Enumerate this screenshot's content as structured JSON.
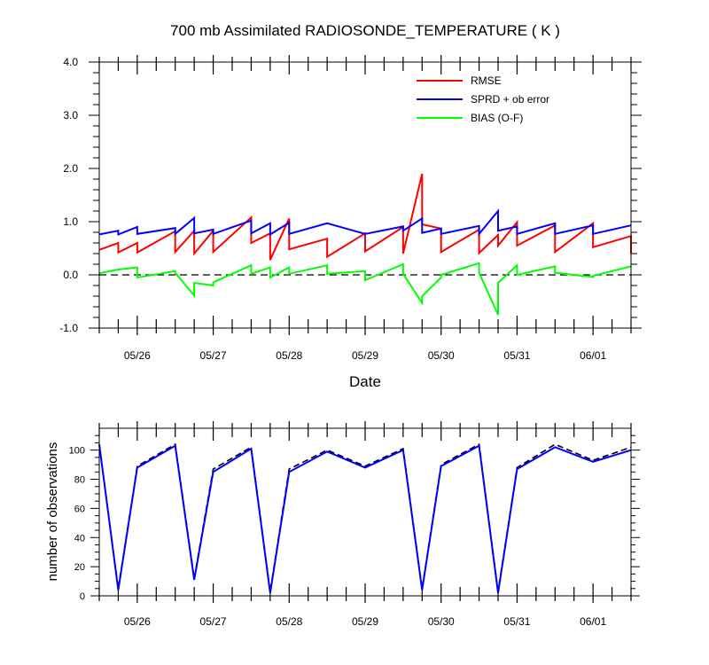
{
  "chart_data": [
    {
      "type": "line",
      "title": "700 mb Assimilated RADIOSONDE_TEMPERATURE ( K )",
      "xlabel": "Date",
      "ylabel": "",
      "x_type": "date",
      "xlim": [
        "2014-05-25T12:00",
        "2014-06-01T12:00"
      ],
      "ylim": [
        -1.0,
        4.0
      ],
      "yticks": [
        "-1.0",
        "0.0",
        "1.0",
        "2.0",
        "3.0",
        "4.0"
      ],
      "xticks": [
        "05/26",
        "05/27",
        "05/28",
        "05/29",
        "05/30",
        "05/31",
        "06/01"
      ],
      "zero_line": "dashed",
      "legend_position": "top-right",
      "series": [
        {
          "name": "RMSE",
          "color": "#ff0000",
          "points": [
            [
              "2014-05-25T12:00",
              0.47
            ],
            [
              "2014-05-25T18:00",
              0.6
            ],
            [
              "2014-05-25T18:00",
              0.42
            ],
            [
              "2014-05-26T00:00",
              0.6
            ],
            [
              "2014-05-26T00:00",
              0.42
            ],
            [
              "2014-05-26T12:00",
              0.82
            ],
            [
              "2014-05-26T12:00",
              0.43
            ],
            [
              "2014-05-26T18:00",
              0.83
            ],
            [
              "2014-05-26T18:00",
              0.4
            ],
            [
              "2014-05-27T00:00",
              0.83
            ],
            [
              "2014-05-27T00:00",
              0.43
            ],
            [
              "2014-05-27T12:00",
              1.08
            ],
            [
              "2014-05-27T12:00",
              0.6
            ],
            [
              "2014-05-27T18:00",
              0.78
            ],
            [
              "2014-05-27T18:00",
              0.28
            ],
            [
              "2014-05-28T00:00",
              1.06
            ],
            [
              "2014-05-28T00:00",
              0.48
            ],
            [
              "2014-05-28T12:00",
              0.68
            ],
            [
              "2014-05-28T12:00",
              0.34
            ],
            [
              "2014-05-29T00:00",
              0.78
            ],
            [
              "2014-05-29T00:00",
              0.44
            ],
            [
              "2014-05-29T12:00",
              0.9
            ],
            [
              "2014-05-29T12:00",
              0.4
            ],
            [
              "2014-05-29T18:00",
              1.9
            ],
            [
              "2014-05-29T18:00",
              0.95
            ],
            [
              "2014-05-30T00:00",
              0.87
            ],
            [
              "2014-05-30T00:00",
              0.43
            ],
            [
              "2014-05-30T12:00",
              0.85
            ],
            [
              "2014-05-30T12:00",
              0.41
            ],
            [
              "2014-05-30T18:00",
              0.75
            ],
            [
              "2014-05-30T18:00",
              0.55
            ],
            [
              "2014-05-31T00:00",
              0.99
            ],
            [
              "2014-05-31T00:00",
              0.55
            ],
            [
              "2014-05-31T12:00",
              0.93
            ],
            [
              "2014-05-31T12:00",
              0.43
            ],
            [
              "2014-06-01T00:00",
              0.97
            ],
            [
              "2014-06-01T00:00",
              0.52
            ],
            [
              "2014-06-01T12:00",
              0.73
            ],
            [
              "2014-06-01T12:00",
              0.4
            ]
          ]
        },
        {
          "name": "SPRD + ob error",
          "color": "#0000ff",
          "points": [
            [
              "2014-05-25T12:00",
              0.76
            ],
            [
              "2014-05-25T18:00",
              0.83
            ],
            [
              "2014-05-25T18:00",
              0.76
            ],
            [
              "2014-05-26T00:00",
              0.9
            ],
            [
              "2014-05-26T00:00",
              0.77
            ],
            [
              "2014-05-26T12:00",
              0.88
            ],
            [
              "2014-05-26T12:00",
              0.77
            ],
            [
              "2014-05-26T18:00",
              1.07
            ],
            [
              "2014-05-26T18:00",
              0.78
            ],
            [
              "2014-05-27T00:00",
              0.85
            ],
            [
              "2014-05-27T00:00",
              0.77
            ],
            [
              "2014-05-27T12:00",
              1.02
            ],
            [
              "2014-05-27T12:00",
              0.78
            ],
            [
              "2014-05-27T18:00",
              0.97
            ],
            [
              "2014-05-27T18:00",
              0.76
            ],
            [
              "2014-05-28T00:00",
              0.98
            ],
            [
              "2014-05-28T00:00",
              0.77
            ],
            [
              "2014-05-28T12:00",
              0.97
            ],
            [
              "2014-05-29T00:00",
              0.77
            ],
            [
              "2014-05-29T12:00",
              0.91
            ],
            [
              "2014-05-29T12:00",
              0.83
            ],
            [
              "2014-05-29T18:00",
              1.06
            ],
            [
              "2014-05-29T18:00",
              0.79
            ],
            [
              "2014-05-30T00:00",
              0.87
            ],
            [
              "2014-05-30T00:00",
              0.77
            ],
            [
              "2014-05-30T12:00",
              0.92
            ],
            [
              "2014-05-30T12:00",
              0.77
            ],
            [
              "2014-05-30T18:00",
              1.2
            ],
            [
              "2014-05-30T18:00",
              0.83
            ],
            [
              "2014-05-31T00:00",
              0.91
            ],
            [
              "2014-05-31T00:00",
              0.77
            ],
            [
              "2014-05-31T12:00",
              0.97
            ],
            [
              "2014-05-31T12:00",
              0.77
            ],
            [
              "2014-06-01T00:00",
              0.93
            ],
            [
              "2014-06-01T00:00",
              0.77
            ],
            [
              "2014-06-01T12:00",
              0.93
            ]
          ]
        },
        {
          "name": "BIAS (O-F)",
          "color": "#00ff00",
          "points": [
            [
              "2014-05-25T12:00",
              0.03
            ],
            [
              "2014-05-25T18:00",
              0.1
            ],
            [
              "2014-05-26T00:00",
              0.14
            ],
            [
              "2014-05-26T00:00",
              -0.05
            ],
            [
              "2014-05-26T12:00",
              0.07
            ],
            [
              "2014-05-26T12:00",
              0.04
            ],
            [
              "2014-05-26T18:00",
              -0.39
            ],
            [
              "2014-05-26T18:00",
              -0.15
            ],
            [
              "2014-05-27T00:00",
              -0.2
            ],
            [
              "2014-05-27T00:00",
              -0.14
            ],
            [
              "2014-05-27T12:00",
              0.18
            ],
            [
              "2014-05-27T12:00",
              0.02
            ],
            [
              "2014-05-27T18:00",
              0.14
            ],
            [
              "2014-05-27T18:00",
              -0.05
            ],
            [
              "2014-05-28T00:00",
              0.14
            ],
            [
              "2014-05-28T00:00",
              0.02
            ],
            [
              "2014-05-28T12:00",
              0.18
            ],
            [
              "2014-05-28T12:00",
              0.02
            ],
            [
              "2014-05-29T00:00",
              0.07
            ],
            [
              "2014-05-29T00:00",
              -0.1
            ],
            [
              "2014-05-29T12:00",
              0.2
            ],
            [
              "2014-05-29T12:00",
              0.02
            ],
            [
              "2014-05-29T18:00",
              -0.53
            ],
            [
              "2014-05-29T18:00",
              -0.4
            ],
            [
              "2014-05-30T00:00",
              -0.05
            ],
            [
              "2014-05-30T00:00",
              0.0
            ],
            [
              "2014-05-30T12:00",
              0.22
            ],
            [
              "2014-05-30T12:00",
              0.04
            ],
            [
              "2014-05-30T18:00",
              -0.75
            ],
            [
              "2014-05-30T18:00",
              -0.15
            ],
            [
              "2014-05-31T00:00",
              0.18
            ],
            [
              "2014-05-31T00:00",
              0.0
            ],
            [
              "2014-05-31T12:00",
              0.16
            ],
            [
              "2014-05-31T12:00",
              0.04
            ],
            [
              "2014-06-01T00:00",
              -0.04
            ],
            [
              "2014-06-01T00:00",
              -0.02
            ],
            [
              "2014-06-01T12:00",
              0.16
            ]
          ]
        }
      ]
    },
    {
      "type": "line",
      "title": "",
      "xlabel": "",
      "ylabel": "number of observations",
      "x_type": "date",
      "xlim": [
        "2014-05-25T12:00",
        "2014-06-01T12:00"
      ],
      "ylim": [
        0,
        115
      ],
      "yticks": [
        "0",
        "20",
        "40",
        "60",
        "80",
        "100"
      ],
      "xticks": [
        "05/26",
        "05/27",
        "05/28",
        "05/29",
        "05/30",
        "05/31",
        "06/01"
      ],
      "series": [
        {
          "style": "dashed",
          "color": "#000000",
          "points": [
            [
              "2014-05-25T12:00",
              104
            ],
            [
              "2014-05-25T18:00",
              5
            ],
            [
              "2014-05-26T00:00",
              89
            ],
            [
              "2014-05-26T12:00",
              104
            ],
            [
              "2014-05-26T18:00",
              12
            ],
            [
              "2014-05-27T00:00",
              87
            ],
            [
              "2014-05-27T12:00",
              102
            ],
            [
              "2014-05-27T18:00",
              3
            ],
            [
              "2014-05-28T00:00",
              87
            ],
            [
              "2014-05-28T12:00",
              100
            ],
            [
              "2014-05-29T00:00",
              89
            ],
            [
              "2014-05-29T12:00",
              101
            ],
            [
              "2014-05-29T18:00",
              5
            ],
            [
              "2014-05-30T00:00",
              90
            ],
            [
              "2014-05-30T12:00",
              104
            ],
            [
              "2014-05-30T18:00",
              3
            ],
            [
              "2014-05-31T00:00",
              88
            ],
            [
              "2014-05-31T12:00",
              104
            ],
            [
              "2014-06-01T00:00",
              93
            ],
            [
              "2014-06-01T12:00",
              102
            ]
          ]
        },
        {
          "style": "solid",
          "color": "#0000ff",
          "points": [
            [
              "2014-05-25T12:00",
              104
            ],
            [
              "2014-05-25T18:00",
              4
            ],
            [
              "2014-05-26T00:00",
              88
            ],
            [
              "2014-05-26T12:00",
              103
            ],
            [
              "2014-05-26T18:00",
              11
            ],
            [
              "2014-05-27T00:00",
              85
            ],
            [
              "2014-05-27T12:00",
              101
            ],
            [
              "2014-05-27T18:00",
              2
            ],
            [
              "2014-05-28T00:00",
              85
            ],
            [
              "2014-05-28T12:00",
              99
            ],
            [
              "2014-05-29T00:00",
              88
            ],
            [
              "2014-05-29T12:00",
              100
            ],
            [
              "2014-05-29T18:00",
              4
            ],
            [
              "2014-05-30T00:00",
              89
            ],
            [
              "2014-05-30T12:00",
              103
            ],
            [
              "2014-05-30T18:00",
              2
            ],
            [
              "2014-05-31T00:00",
              87
            ],
            [
              "2014-05-31T12:00",
              102
            ],
            [
              "2014-06-01T00:00",
              92
            ],
            [
              "2014-06-01T12:00",
              100
            ]
          ]
        }
      ]
    }
  ]
}
